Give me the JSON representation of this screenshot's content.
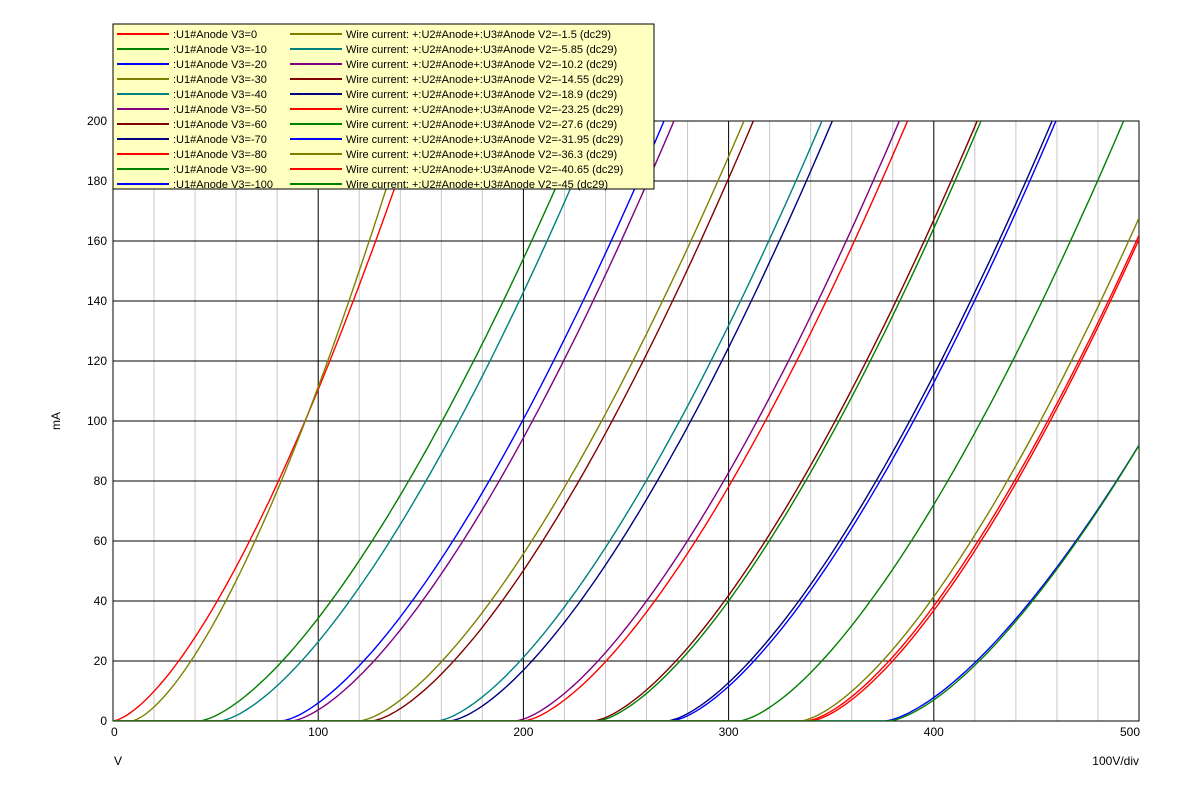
{
  "chart_data": {
    "type": "line",
    "xlabel": "V",
    "ylabel": "mA",
    "x_scale_note": "100V/div",
    "xlim": [
      0,
      500
    ],
    "ylim": [
      0,
      200
    ],
    "x_ticks": [
      "0",
      "100",
      "200",
      "300",
      "400",
      "500"
    ],
    "y_ticks": [
      "0",
      "20",
      "40",
      "60",
      "80",
      "100",
      "120",
      "140",
      "160",
      "180",
      "200"
    ],
    "grid": true,
    "legend_position": "top-left",
    "model": "I = k * (V - V0)^1.5 (mA), clipped at 0",
    "series": [
      {
        "name": ":U1#Anode V3=0",
        "color": "#ff0000",
        "v0": 0,
        "k": 0.1105
      },
      {
        "name": ":U1#Anode V3=-10",
        "color": "#008000",
        "v0": 42,
        "k": 0.0776
      },
      {
        "name": ":U1#Anode V3=-20",
        "color": "#0000ff",
        "v0": 82,
        "k": 0.0785
      },
      {
        "name": ":U1#Anode V3=-30",
        "color": "#808000",
        "v0": 120,
        "k": 0.0779
      },
      {
        "name": ":U1#Anode V3=-40",
        "color": "#008080",
        "v0": 158,
        "k": 0.0779
      },
      {
        "name": ":U1#Anode V3=-50",
        "color": "#800080",
        "v0": 196,
        "k": 0.0781
      },
      {
        "name": ":U1#Anode V3=-60",
        "color": "#800000",
        "v0": 234,
        "k": 0.0781
      },
      {
        "name": ":U1#Anode V3=-70",
        "color": "#000080",
        "v0": 270,
        "k": 0.0778
      },
      {
        "name": ":U1#Anode V3=-80",
        "color": "#ff0000",
        "v0": 338,
        "k": 0.0785
      },
      {
        "name": ":U1#Anode V3=-90",
        "color": "#008000",
        "v0": 305,
        "k": 0.0779
      },
      {
        "name": ":U1#Anode V3=-100",
        "color": "#0000ff",
        "v0": 376,
        "k": 0.0666
      },
      {
        "name": "Wire current: +:U2#Anode+:U3#Anode V2=-1.5 (dc29)",
        "color": "#808000",
        "v0": 9,
        "k": 0.1283
      },
      {
        "name": "Wire current: +:U2#Anode+:U3#Anode V2=-5.85 (dc29)",
        "color": "#008080",
        "v0": 52,
        "k": 0.0794
      },
      {
        "name": "Wire current: +:U2#Anode+:U3#Anode V2=-10.2 (dc29)",
        "color": "#800080",
        "v0": 87,
        "k": 0.0786
      },
      {
        "name": "Wire current: +:U2#Anode+:U3#Anode V2=-14.55 (dc29)",
        "color": "#800000",
        "v0": 126,
        "k": 0.0788
      },
      {
        "name": "Wire current: +:U2#Anode+:U3#Anode V2=-18.9 (dc29)",
        "color": "#000080",
        "v0": 164,
        "k": 0.0785
      },
      {
        "name": "Wire current: +:U2#Anode+:U3#Anode V2=-23.25 (dc29)",
        "color": "#ff0000",
        "v0": 200,
        "k": 0.0781
      },
      {
        "name": "Wire current: +:U2#Anode+:U3#Anode V2=-27.6 (dc29)",
        "color": "#008000",
        "v0": 236,
        "k": 0.0782
      },
      {
        "name": "Wire current: +:U2#Anode+:U3#Anode V2=-31.95 (dc29)",
        "color": "#0000ff",
        "v0": 272,
        "k": 0.0779
      },
      {
        "name": "Wire current: +:U2#Anode+:U3#Anode V2=-36.3 (dc29)",
        "color": "#808000",
        "v0": 335,
        "k": 0.0791
      },
      {
        "name": "Wire current: +:U2#Anode+:U3#Anode V2=-40.65 (dc29)",
        "color": "#ff0000",
        "v0": 340,
        "k": 0.0793
      },
      {
        "name": "Wire current: +:U2#Anode+:U3#Anode V2=-45 (dc29)",
        "color": "#008000",
        "v0": 378,
        "k": 0.0682
      }
    ],
    "legend_columns": [
      [
        0,
        1,
        2,
        3,
        4,
        5,
        6,
        7,
        8,
        9,
        10
      ],
      [
        11,
        12,
        13,
        14,
        15,
        16,
        17,
        18,
        19,
        20,
        21
      ]
    ]
  },
  "colors": {
    "background": "#ffffff",
    "minor_grid": "#c8c8c8",
    "major_grid": "#000000",
    "legend_bg": "#ffffc0"
  }
}
